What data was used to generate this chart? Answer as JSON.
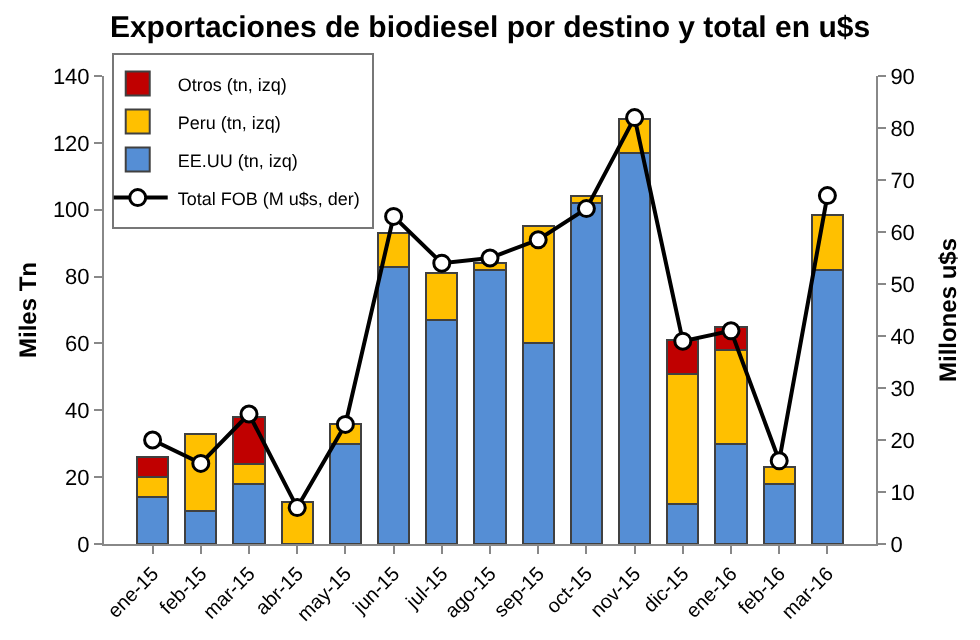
{
  "chart_data": {
    "type": "bar",
    "title": "Exportaciones de biodiesel por destino y total en u$s",
    "ylabel": "Miles Tn",
    "y2label": "Millones u$s",
    "categories": [
      "ene-15",
      "feb-15",
      "mar-15",
      "abr-15",
      "may-15",
      "jun-15",
      "jul-15",
      "ago-15",
      "sep-15",
      "oct-15",
      "nov-15",
      "dic-15",
      "ene-16",
      "feb-16",
      "mar-16"
    ],
    "stacked": true,
    "legend": "top left",
    "grid": false,
    "ylim": [
      0,
      140
    ],
    "yticks": [
      0,
      20,
      40,
      60,
      80,
      100,
      120,
      140
    ],
    "y2lim": [
      0,
      90
    ],
    "y2ticks": [
      0,
      10,
      20,
      30,
      40,
      50,
      60,
      70,
      80,
      90
    ],
    "series": [
      {
        "name": "EE.UU (tn, izq)",
        "color": "#558ed5",
        "values": [
          14,
          10,
          18,
          null,
          30,
          83,
          67,
          82,
          60,
          102,
          117,
          12,
          30,
          18,
          82
        ]
      },
      {
        "name": "Peru (tn, izq)",
        "color": "#ffc000",
        "values": [
          6,
          23,
          6,
          12.5,
          6,
          10,
          14,
          2,
          35,
          2,
          10,
          39,
          28,
          5,
          16.5
        ]
      },
      {
        "name": "Otros (tn, izq)",
        "color": "#c00000",
        "values": [
          6,
          null,
          14,
          null,
          null,
          null,
          null,
          null,
          null,
          null,
          null,
          10,
          7,
          null,
          null
        ]
      },
      {
        "name": "Total FOB (M u$s, der)",
        "color": "#000000",
        "type": "line",
        "axis": "y2",
        "marker": "circle",
        "values": [
          20,
          15.5,
          25,
          7,
          23,
          63,
          54,
          55,
          58.5,
          64.5,
          82,
          39,
          41,
          16,
          67
        ]
      }
    ]
  }
}
